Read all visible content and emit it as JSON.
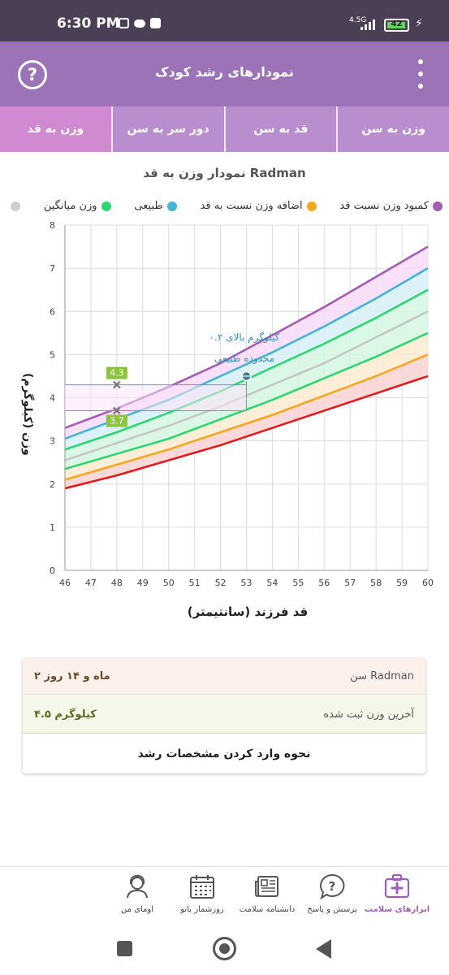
{
  "status_bar": {
    "time": "6:30 PM",
    "network": "4.5G",
    "battery": "42",
    "icons": [
      "instagram-icon",
      "messenger-icon",
      "square-icon",
      "signal-icon",
      "battery-icon",
      "charging-icon"
    ]
  },
  "app_bar": {
    "title": "نمودارهای رشد کودک",
    "help_icon": "help-circle-icon",
    "menu_icon": "more-vert-icon"
  },
  "tabs": [
    {
      "label": "وزن به سن",
      "active": false
    },
    {
      "label": "قد به سن",
      "active": false
    },
    {
      "label": "دور سر به سن",
      "active": false
    },
    {
      "label": "وزن به قد",
      "active": true
    }
  ],
  "chart": {
    "title": "نمودار وزن به قد Radman",
    "legend": [
      {
        "label": "کمبود وزن نسبت قد",
        "color": "#a35bb3"
      },
      {
        "label": "اضافه وزن نسبت به قد",
        "color": "#f5a623"
      },
      {
        "label": "طبیعی",
        "color": "#46b5d1"
      },
      {
        "label": "وزن میانگین",
        "color": "#2ed573"
      },
      {
        "label": "",
        "color": "#cfcfcf"
      }
    ],
    "annotation_line1": "۰.۲ کیلوگرم بالای",
    "annotation_line2": "محدوده طبیعی",
    "marker_upper_label": "4.3",
    "marker_lower_label": "3.7"
  },
  "chart_data": {
    "type": "line",
    "title": "نمودار وزن به قد Radman",
    "xlabel": "قد فرزند (سانتیمتر)",
    "ylabel": "وزن (کیلوگرم)",
    "xlim": [
      46,
      60
    ],
    "ylim": [
      0,
      8
    ],
    "x_ticks": [
      46,
      47,
      48,
      49,
      50,
      51,
      52,
      53,
      54,
      55,
      56,
      57,
      58,
      59,
      60
    ],
    "y_ticks": [
      0,
      1,
      2,
      3,
      4,
      5,
      6,
      7,
      8
    ],
    "grid": true,
    "legend_position": "top",
    "x": [
      46,
      48,
      50,
      52,
      54,
      56,
      58,
      60
    ],
    "series": [
      {
        "name": "s1",
        "color": "#a35bb3",
        "values": [
          3.3,
          3.75,
          4.25,
          4.8,
          5.45,
          6.1,
          6.8,
          7.5
        ]
      },
      {
        "name": "s2",
        "color": "#46b5d1",
        "values": [
          3.05,
          3.5,
          3.95,
          4.5,
          5.05,
          5.65,
          6.3,
          7.0
        ]
      },
      {
        "name": "s3",
        "color": "#2ed573",
        "values": [
          2.8,
          3.2,
          3.65,
          4.15,
          4.7,
          5.25,
          5.85,
          6.5
        ]
      },
      {
        "name": "s4",
        "color": "#c6c6c6",
        "values": [
          2.55,
          2.95,
          3.35,
          3.8,
          4.3,
          4.8,
          5.4,
          6.0
        ]
      },
      {
        "name": "s5",
        "color": "#2ed573",
        "values": [
          2.35,
          2.7,
          3.05,
          3.5,
          3.95,
          4.45,
          4.95,
          5.5
        ]
      },
      {
        "name": "s6",
        "color": "#f5a623",
        "values": [
          2.1,
          2.45,
          2.8,
          3.2,
          3.6,
          4.05,
          4.5,
          5.0
        ]
      },
      {
        "name": "s7",
        "color": "#e31a1c",
        "values": [
          1.9,
          2.2,
          2.55,
          2.9,
          3.3,
          3.7,
          4.1,
          4.5
        ]
      }
    ],
    "band_colors": [
      "#f7dcf7",
      "#d7f0f7",
      "#d3f7e0",
      "#d3f7e0",
      "#fdebd0",
      "#fbd2d2"
    ],
    "point": {
      "x": 53,
      "y": 4.5
    },
    "normal_upper_at_48": 4.3,
    "normal_lower_at_48": 3.7
  },
  "info_card": {
    "age_label": "سن Radman",
    "age_value": "۲ ماه و ۱۴ روز",
    "weight_label": "آخرین وزن ثبت شده",
    "weight_value": "۴.۵ کیلوگرم",
    "howto_label": "نحوه وارد کردن مشخصات رشد"
  },
  "bottom_nav": [
    {
      "label": "ابزارهای سلامت",
      "icon": "first-aid-kit-icon",
      "active": true
    },
    {
      "label": "پرسش و پاسخ",
      "icon": "question-bubble-icon",
      "active": false
    },
    {
      "label": "دانشنامه سلامت",
      "icon": "newspaper-icon",
      "active": false
    },
    {
      "label": "روزشمار بانو",
      "icon": "calendar-icon",
      "active": false
    },
    {
      "label": "اومای من",
      "icon": "woman-avatar-icon",
      "active": false
    }
  ]
}
